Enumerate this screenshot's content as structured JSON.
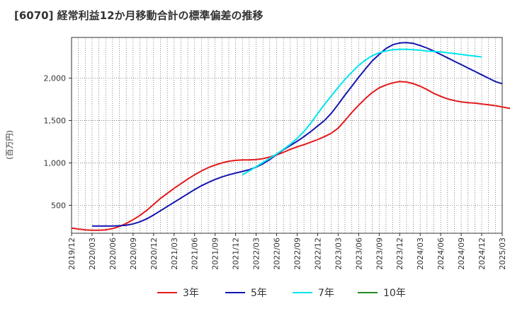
{
  "chart_data": {
    "type": "line",
    "title": "[6070]  経常利益12か月移動合計の標準偏差の推移",
    "ylabel": "(百万円)",
    "xlabel": "",
    "ylim": [
      170,
      2480
    ],
    "yticks": [
      500,
      1000,
      1500,
      2000
    ],
    "ytick_labels": [
      "500",
      "1,000",
      "1,500",
      "2,000"
    ],
    "x_ticks": [
      "2019/12",
      "2020/03",
      "2020/06",
      "2020/09",
      "2020/12",
      "2021/03",
      "2021/06",
      "2021/09",
      "2021/12",
      "2022/03",
      "2022/06",
      "2022/09",
      "2022/12",
      "2023/03",
      "2023/06",
      "2023/09",
      "2023/12",
      "2024/03",
      "2024/06",
      "2024/09",
      "2024/12",
      "2025/03"
    ],
    "grid": true,
    "legend_position": "bottom",
    "series": [
      {
        "name": "3年",
        "color": "#e31a1c",
        "start": "2019/12",
        "values": [
          230,
          220,
          210,
          205,
          205,
          210,
          225,
          250,
          285,
          330,
          380,
          440,
          510,
          580,
          640,
          700,
          755,
          810,
          860,
          905,
          945,
          975,
          1000,
          1020,
          1030,
          1035,
          1035,
          1040,
          1050,
          1070,
          1095,
          1125,
          1160,
          1190,
          1215,
          1245,
          1275,
          1310,
          1350,
          1410,
          1500,
          1595,
          1680,
          1760,
          1830,
          1885,
          1920,
          1945,
          1960,
          1955,
          1935,
          1905,
          1865,
          1820,
          1785,
          1755,
          1735,
          1720,
          1710,
          1705,
          1695,
          1685,
          1675,
          1660,
          1645,
          1630,
          1615,
          1615
        ]
      },
      {
        "name": "5年",
        "color": "#1515b0",
        "start": "2020/03",
        "values": [
          255,
          255,
          255,
          255,
          258,
          265,
          280,
          305,
          340,
          385,
          435,
          485,
          535,
          585,
          635,
          685,
          730,
          770,
          805,
          835,
          860,
          880,
          900,
          920,
          950,
          990,
          1040,
          1100,
          1155,
          1205,
          1255,
          1310,
          1370,
          1435,
          1500,
          1585,
          1690,
          1800,
          1905,
          2010,
          2110,
          2205,
          2280,
          2350,
          2395,
          2415,
          2420,
          2410,
          2385,
          2355,
          2320,
          2280,
          2240,
          2200,
          2160,
          2120,
          2080,
          2040,
          2000,
          1960,
          1935
        ]
      },
      {
        "name": "7年",
        "color": "#00e5ee",
        "start": "2022/01",
        "values": [
          860,
          905,
          955,
          1005,
          1055,
          1105,
          1160,
          1220,
          1290,
          1370,
          1470,
          1580,
          1690,
          1790,
          1890,
          1985,
          2070,
          2150,
          2215,
          2265,
          2300,
          2320,
          2335,
          2340,
          2340,
          2335,
          2330,
          2320,
          2315,
          2310,
          2300,
          2290,
          2280,
          2270,
          2260,
          2250
        ]
      },
      {
        "name": "10年",
        "color": "#228b22",
        "start": "2024/12",
        "values": []
      }
    ]
  }
}
